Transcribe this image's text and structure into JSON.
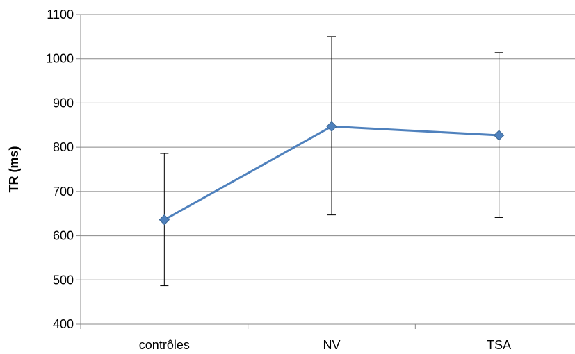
{
  "chart_data": {
    "type": "line",
    "title": "",
    "xlabel": "",
    "ylabel": "TR (ms)",
    "ylim": [
      400,
      1100
    ],
    "yticks": [
      400,
      500,
      600,
      700,
      800,
      900,
      1000,
      1100
    ],
    "categories": [
      "contrôles",
      "NV",
      "TSA"
    ],
    "grid": "horizontal",
    "legend": "none",
    "series": [
      {
        "values": [
          636,
          847,
          827
        ],
        "error_low": [
          487,
          647,
          641
        ],
        "error_high": [
          786,
          1050,
          1014
        ],
        "color": "#4F81BD",
        "marker": "diamond"
      }
    ]
  }
}
